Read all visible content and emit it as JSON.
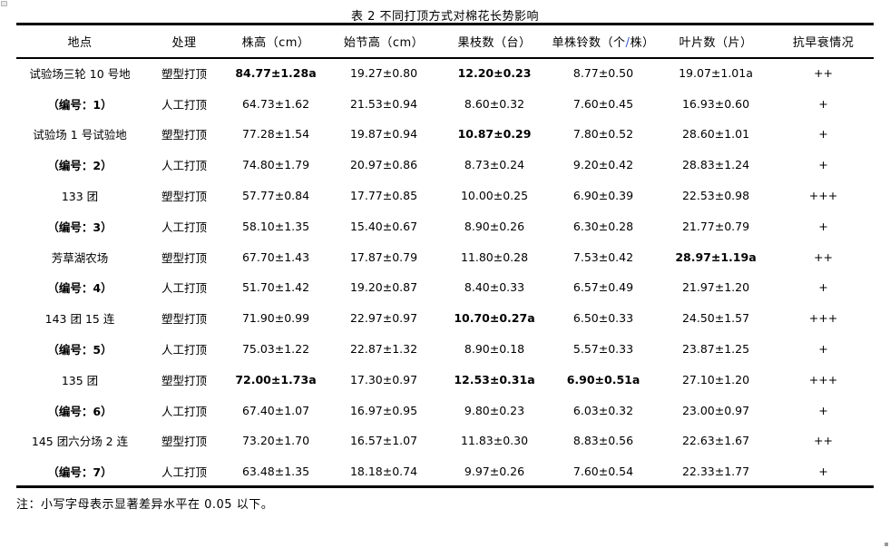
{
  "title": "表 2 不同打顶方式对棉花长势影响",
  "note": "注：小写字母表示显著差异水平在 0.05 以下。",
  "table": {
    "slash_color": "#3a5acd",
    "column_keys": [
      "location",
      "treatment",
      "plant-height-cm",
      "first-node-height-cm",
      "fruit-branches",
      "bolls-per-plant",
      "leaf-count",
      "premature-senescence-resistance"
    ],
    "headers": [
      "地点",
      "处理",
      "株高（cm）",
      "始节高（cm）",
      "果枝数（台）",
      "单株铃数（个/株）",
      "叶片数（片）",
      "抗早衰情况"
    ],
    "rows": [
      {
        "cells": [
          "试验场三轮 10 号地",
          "塑型打顶",
          "84.77±1.28a",
          "19.27±0.80",
          "12.20±0.23",
          "8.77±0.50",
          "19.07±1.01a",
          "++"
        ],
        "bold": [
          false,
          false,
          true,
          false,
          true,
          false,
          false,
          false
        ]
      },
      {
        "cells": [
          "（编号：1）",
          "人工打顶",
          "64.73±1.62",
          "21.53±0.94",
          "8.60±0.32",
          "7.60±0.45",
          "16.93±0.60",
          "+"
        ],
        "bold": [
          true,
          false,
          false,
          false,
          false,
          false,
          false,
          false
        ]
      },
      {
        "cells": [
          "试验场 1 号试验地",
          "塑型打顶",
          "77.28±1.54",
          "19.87±0.94",
          "10.87±0.29",
          "7.80±0.52",
          "28.60±1.01",
          "+"
        ],
        "bold": [
          false,
          false,
          false,
          false,
          true,
          false,
          false,
          false
        ]
      },
      {
        "cells": [
          "（编号：2）",
          "人工打顶",
          "74.80±1.79",
          "20.97±0.86",
          "8.73±0.24",
          "9.20±0.42",
          "28.83±1.24",
          "+"
        ],
        "bold": [
          true,
          false,
          false,
          false,
          false,
          false,
          false,
          false
        ]
      },
      {
        "cells": [
          "133 团",
          "塑型打顶",
          "57.77±0.84",
          "17.77±0.85",
          "10.00±0.25",
          "6.90±0.39",
          "22.53±0.98",
          "+++"
        ],
        "bold": [
          false,
          false,
          false,
          false,
          false,
          false,
          false,
          false
        ]
      },
      {
        "cells": [
          "（编号：3）",
          "人工打顶",
          "58.10±1.35",
          "15.40±0.67",
          "8.90±0.26",
          "6.30±0.28",
          "21.77±0.79",
          "+"
        ],
        "bold": [
          true,
          false,
          false,
          false,
          false,
          false,
          false,
          false
        ]
      },
      {
        "cells": [
          "芳草湖农场",
          "塑型打顶",
          "67.70±1.43",
          "17.87±0.79",
          "11.80±0.28",
          "7.53±0.42",
          "28.97±1.19a",
          "++"
        ],
        "bold": [
          false,
          false,
          false,
          false,
          false,
          false,
          true,
          false
        ]
      },
      {
        "cells": [
          "（编号：4）",
          "人工打顶",
          "51.70±1.42",
          "19.20±0.87",
          "8.40±0.33",
          "6.57±0.49",
          "21.97±1.20",
          "+"
        ],
        "bold": [
          true,
          false,
          false,
          false,
          false,
          false,
          false,
          false
        ]
      },
      {
        "cells": [
          "143 团 15 连",
          "塑型打顶",
          "71.90±0.99",
          "22.97±0.97",
          "10.70±0.27a",
          "6.50±0.33",
          "24.50±1.57",
          "+++"
        ],
        "bold": [
          false,
          false,
          false,
          false,
          true,
          false,
          false,
          false
        ]
      },
      {
        "cells": [
          "（编号：5）",
          "人工打顶",
          "75.03±1.22",
          "22.87±1.32",
          "8.90±0.18",
          "5.57±0.33",
          "23.87±1.25",
          "+"
        ],
        "bold": [
          true,
          false,
          false,
          false,
          false,
          false,
          false,
          false
        ]
      },
      {
        "cells": [
          "135 团",
          "塑型打顶",
          "72.00±1.73a",
          "17.30±0.97",
          "12.53±0.31a",
          "6.90±0.51a",
          "27.10±1.20",
          "+++"
        ],
        "bold": [
          false,
          false,
          true,
          false,
          true,
          true,
          false,
          false
        ]
      },
      {
        "cells": [
          "（编号：6）",
          "人工打顶",
          "67.40±1.07",
          "16.97±0.95",
          "9.80±0.23",
          "6.03±0.32",
          "23.00±0.97",
          "+"
        ],
        "bold": [
          true,
          false,
          false,
          false,
          false,
          false,
          false,
          false
        ]
      },
      {
        "cells": [
          "145 团六分场 2 连",
          "塑型打顶",
          "73.20±1.70",
          "16.57±1.07",
          "11.83±0.30",
          "8.83±0.56",
          "22.63±1.67",
          "++"
        ],
        "bold": [
          false,
          false,
          false,
          false,
          false,
          false,
          false,
          false
        ]
      },
      {
        "cells": [
          "（编号：7）",
          "人工打顶",
          "63.48±1.35",
          "18.18±0.74",
          "9.97±0.26",
          "7.60±0.54",
          "22.33±1.77",
          "+"
        ],
        "bold": [
          true,
          false,
          false,
          false,
          false,
          false,
          false,
          false
        ]
      }
    ]
  }
}
